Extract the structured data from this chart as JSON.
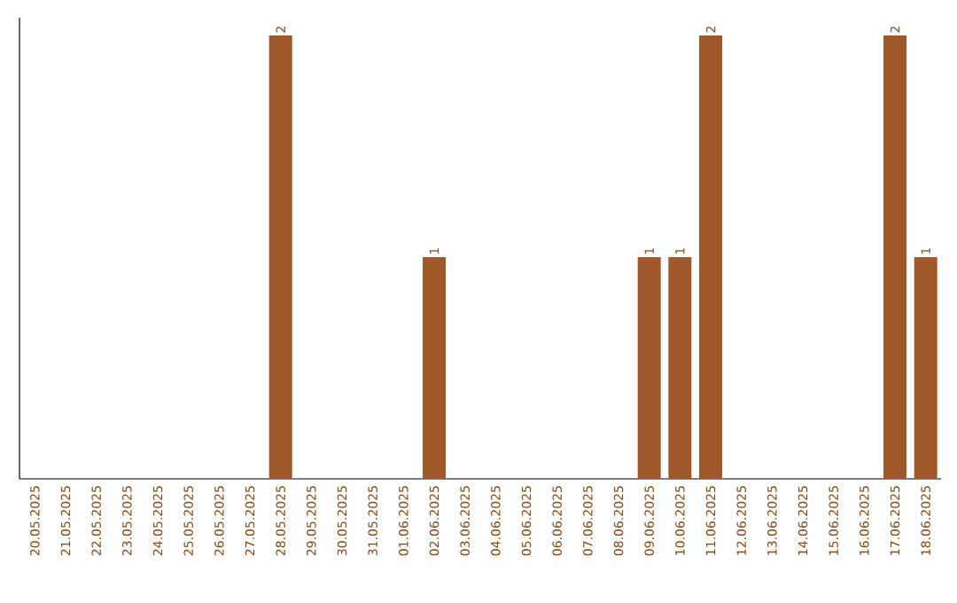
{
  "chart_data": {
    "type": "bar",
    "categories": [
      "20.05.2025",
      "21.05.2025",
      "22.05.2025",
      "23.05.2025",
      "24.05.2025",
      "25.05.2025",
      "26.05.2025",
      "27.05.2025",
      "28.05.2025",
      "29.05.2025",
      "30.05.2025",
      "31.05.2025",
      "01.06.2025",
      "02.06.2025",
      "03.06.2025",
      "04.06.2025",
      "05.06.2025",
      "06.06.2025",
      "07.06.2025",
      "08.06.2025",
      "09.06.2025",
      "10.06.2025",
      "11.06.2025",
      "12.06.2025",
      "13.06.2025",
      "14.06.2025",
      "15.06.2025",
      "16.06.2025",
      "17.06.2025",
      "18.06.2025"
    ],
    "values": [
      0,
      0,
      0,
      0,
      0,
      0,
      0,
      0,
      2,
      0,
      0,
      0,
      0,
      1,
      0,
      0,
      0,
      0,
      0,
      0,
      1,
      1,
      2,
      0,
      0,
      0,
      0,
      0,
      2,
      1
    ],
    "value_labels": [
      null,
      null,
      null,
      null,
      null,
      null,
      null,
      null,
      "2",
      null,
      null,
      null,
      null,
      "1",
      null,
      null,
      null,
      null,
      null,
      null,
      "1",
      "1",
      "2",
      null,
      null,
      null,
      null,
      null,
      "2",
      "1"
    ],
    "color": "#a0572a"
  }
}
